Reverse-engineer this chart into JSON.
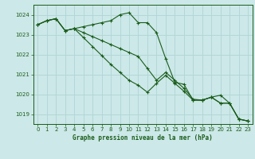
{
  "bg_color": "#cce8e8",
  "grid_color": "#b0d4d4",
  "line_color": "#1a5c1a",
  "title": "Graphe pression niveau de la mer (hPa)",
  "xlim": [
    -0.5,
    23.5
  ],
  "ylim": [
    1018.5,
    1024.5
  ],
  "yticks": [
    1019,
    1020,
    1021,
    1022,
    1023,
    1024
  ],
  "xticks": [
    0,
    1,
    2,
    3,
    4,
    5,
    6,
    7,
    8,
    9,
    10,
    11,
    12,
    13,
    14,
    15,
    16,
    17,
    18,
    19,
    20,
    21,
    22,
    23
  ],
  "series": [
    [
      1023.5,
      1023.7,
      1023.8,
      1023.2,
      1023.3,
      1023.4,
      1023.5,
      1023.6,
      1023.7,
      1024.0,
      1024.1,
      1023.6,
      1023.6,
      1023.1,
      1021.8,
      1020.6,
      1020.5,
      1019.7,
      1019.7,
      1019.85,
      1019.95,
      1019.55,
      1018.75,
      1018.65
    ],
    [
      1023.5,
      1023.7,
      1023.8,
      1023.2,
      1023.3,
      1022.85,
      1022.4,
      1021.95,
      1021.5,
      1021.1,
      1020.7,
      1020.45,
      1020.1,
      1020.55,
      1020.95,
      1020.55,
      1020.15,
      1019.7,
      1019.7,
      1019.85,
      1019.55,
      1019.55,
      1018.75,
      1018.65
    ],
    [
      1023.5,
      1023.7,
      1023.8,
      1023.2,
      1023.3,
      1023.1,
      1022.9,
      1022.7,
      1022.5,
      1022.3,
      1022.1,
      1021.9,
      1021.3,
      1020.7,
      1021.1,
      1020.7,
      1020.3,
      1019.75,
      1019.7,
      1019.85,
      1019.55,
      1019.55,
      1018.75,
      1018.65
    ]
  ]
}
